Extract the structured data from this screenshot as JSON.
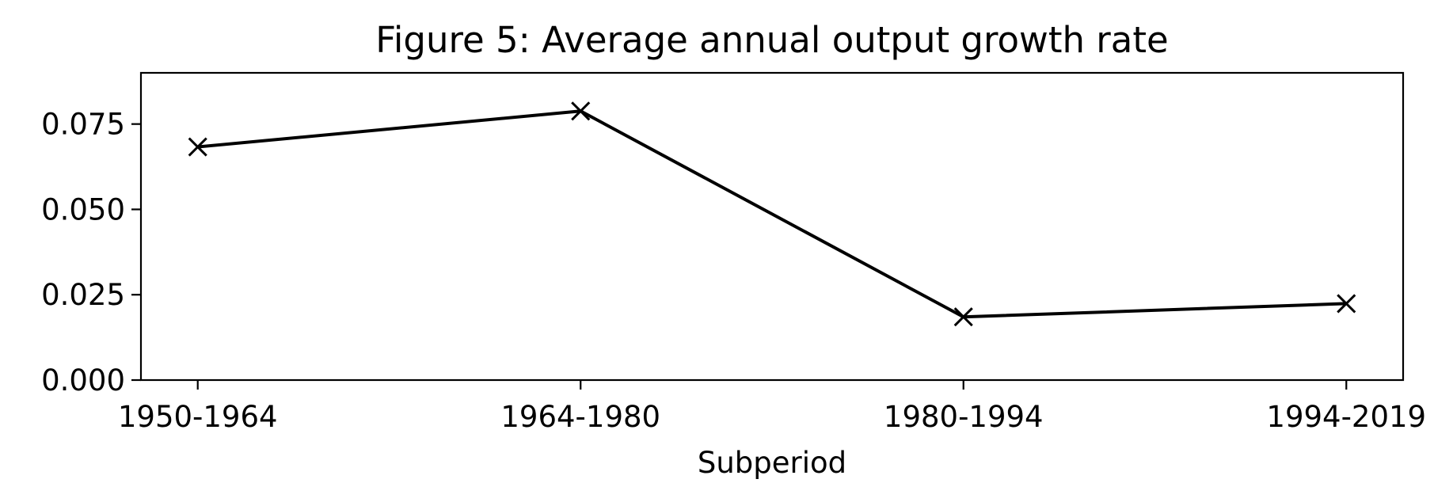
{
  "chart_data": {
    "type": "line",
    "title": "Figure 5: Average annual output growth rate",
    "xlabel": "Subperiod",
    "ylabel": "",
    "categories": [
      "1950-1964",
      "1964-1980",
      "1980-1994",
      "1994-2019"
    ],
    "series": [
      {
        "values": [
          0.0683,
          0.0788,
          0.0185,
          0.0224
        ],
        "color": "#000000",
        "marker": "x"
      }
    ],
    "ylim": [
      0,
      0.09
    ],
    "yticks": [
      0.0,
      0.025,
      0.05,
      0.075
    ],
    "ytick_labels": [
      "0.000",
      "0.025",
      "0.050",
      "0.075"
    ],
    "grid": false,
    "legend": "none"
  }
}
